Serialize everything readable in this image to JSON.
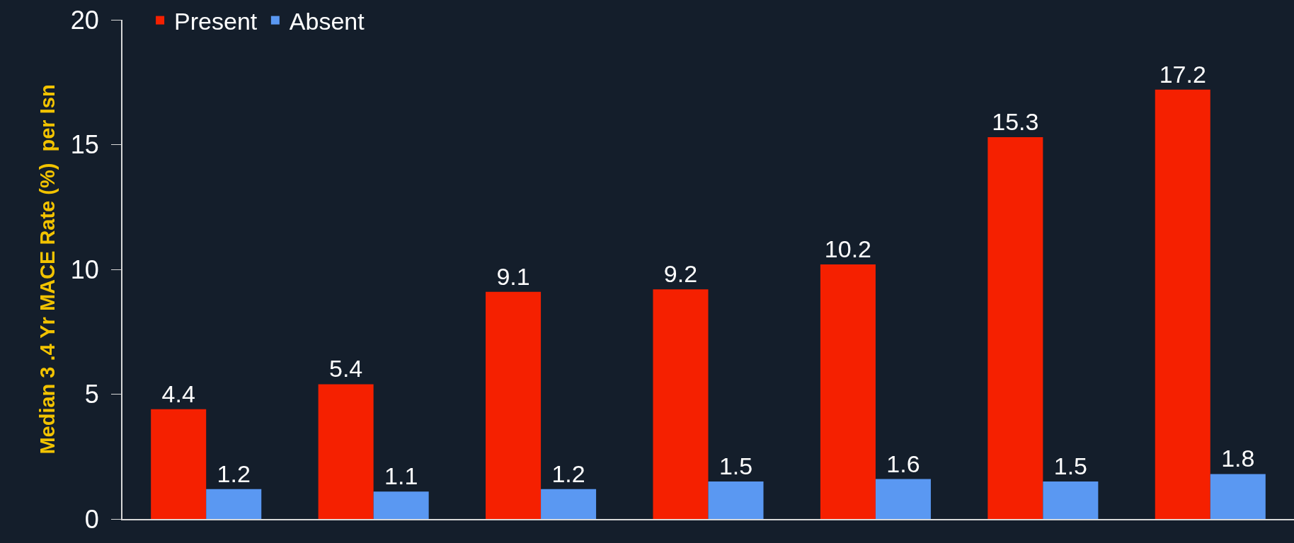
{
  "chart_data": {
    "type": "bar",
    "ylabel": "Median 3 .4 Yr MACE Rate (%)  per Isn",
    "categories": [
      null,
      null,
      null,
      null,
      null,
      null,
      null
    ],
    "series": [
      {
        "name": "Present",
        "color": "#f52000",
        "values": [
          4.4,
          5.4,
          9.1,
          9.2,
          10.2,
          15.3,
          17.2
        ]
      },
      {
        "name": "Absent",
        "color": "#5a98f2",
        "values": [
          1.2,
          1.1,
          1.2,
          1.5,
          1.6,
          1.5,
          1.8
        ]
      }
    ],
    "ylim": [
      0,
      20
    ],
    "yticks": [
      0,
      5,
      10,
      15,
      20
    ],
    "data_labels": true,
    "grid": false,
    "legend": "top left"
  }
}
